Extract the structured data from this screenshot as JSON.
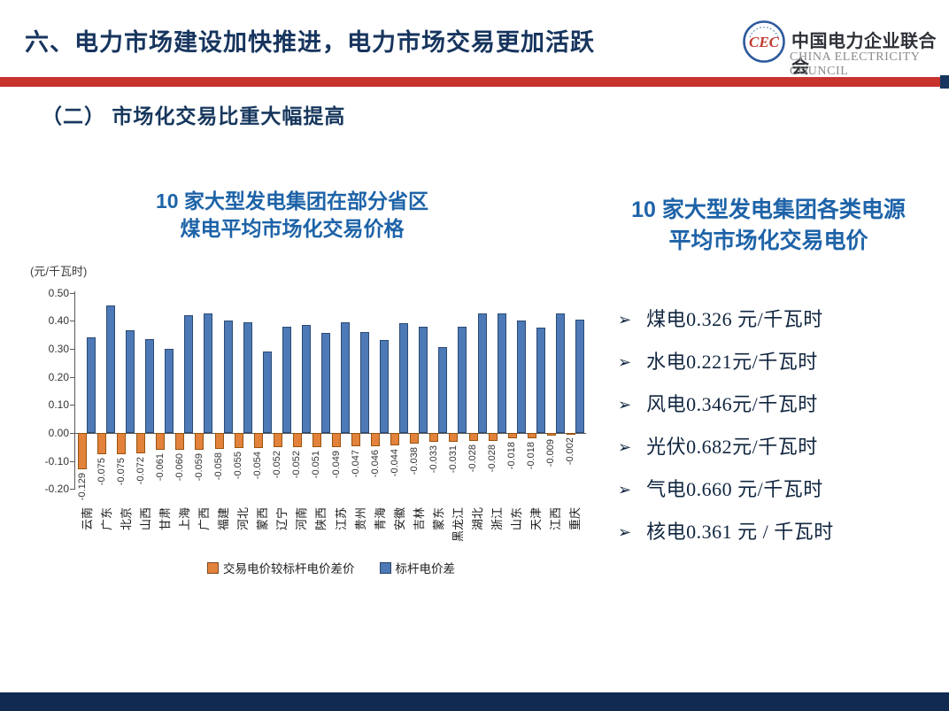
{
  "colors": {
    "navy": "#17355E",
    "subnavy": "#17375D",
    "red": "#C8332E",
    "blue": "#1E63A8",
    "bullet_navy": "#10253F",
    "bar_blue": "#4D7AB6",
    "bar_blue_border": "#2A4A75",
    "bar_orange": "#E2823B",
    "bar_orange_border": "#99540F",
    "bottom_bar": "#112A52"
  },
  "header": {
    "title": "六、电力市场建设加快推进，电力市场交易更加活跃",
    "logo": {
      "emblem_monogram": "CEC",
      "org_cn": "中国电力企业联合会",
      "org_en": "CHINA ELECTRICITY COUNCIL"
    }
  },
  "section": {
    "subtitle": "（二） 市场化交易比重大幅提高"
  },
  "left_chart": {
    "title_line1": "10 家大型发电集团在部分省区",
    "title_line2": "煤电平均市场化交易价格",
    "unit_label": "(元/千瓦时)"
  },
  "chart_data": {
    "type": "bar",
    "title": "10 家大型发电集团在部分省区煤电平均市场化交易价格",
    "ylabel": "元/千瓦时",
    "ylim": [
      -0.2,
      0.5
    ],
    "grid": false,
    "legend_position": "bottom",
    "ytick_labels": [
      "0.50",
      "0.40",
      "0.30",
      "0.20",
      "0.10",
      "0.00",
      "-0.10",
      "-0.20"
    ],
    "categories": [
      "云南",
      "广东",
      "北京",
      "山西",
      "甘肃",
      "上海",
      "广西",
      "福建",
      "河北",
      "蒙西",
      "辽宁",
      "河南",
      "陕西",
      "江苏",
      "贵州",
      "青海",
      "安徽",
      "吉林",
      "蒙东",
      "黑龙江",
      "湖北",
      "浙江",
      "山东",
      "天津",
      "江西",
      "重庆"
    ],
    "series": [
      {
        "name": "交易电价较标杆电价差价",
        "color": "#E2823B",
        "values": [
          -0.129,
          -0.075,
          -0.075,
          -0.072,
          -0.061,
          -0.06,
          -0.059,
          -0.058,
          -0.055,
          -0.054,
          -0.052,
          -0.052,
          -0.051,
          -0.049,
          -0.047,
          -0.046,
          -0.044,
          -0.038,
          -0.033,
          -0.031,
          -0.028,
          -0.028,
          -0.018,
          -0.018,
          -0.009,
          -0.002
        ],
        "labels": [
          "-0.129",
          "-0.075",
          "-0.075",
          "-0.072",
          "-0.061",
          "-0.060",
          "-0.059",
          "-0.058",
          "-0.055",
          "-0.054",
          "-0.052",
          "-0.052",
          "-0.051",
          "-0.049",
          "-0.047",
          "-0.046",
          "-0.044",
          "-0.038",
          "-0.033",
          "-0.031",
          "-0.028",
          "-0.028",
          "-0.018",
          "-0.018",
          "-0.009",
          "-0.002"
        ]
      },
      {
        "name": "标杆电价差",
        "color": "#4D7AB6",
        "values": [
          0.34,
          0.455,
          0.365,
          0.335,
          0.3,
          0.42,
          0.425,
          0.4,
          0.395,
          0.29,
          0.38,
          0.385,
          0.355,
          0.395,
          0.36,
          0.33,
          0.39,
          0.38,
          0.305,
          0.38,
          0.425,
          0.425,
          0.4,
          0.375,
          0.425,
          0.405
        ]
      }
    ]
  },
  "right_panel": {
    "title_line1": "10 家大型发电集团各类电源",
    "title_line2": "平均市场化交易电价",
    "bullet_marker": "➢",
    "bullets": [
      "煤电0.326 元/千瓦时",
      "水电0.221元/千瓦时",
      "风电0.346元/千瓦时",
      "光伏0.682元/千瓦时",
      "气电0.660 元/千瓦时",
      "核电0.361 元 / 千瓦时"
    ]
  }
}
